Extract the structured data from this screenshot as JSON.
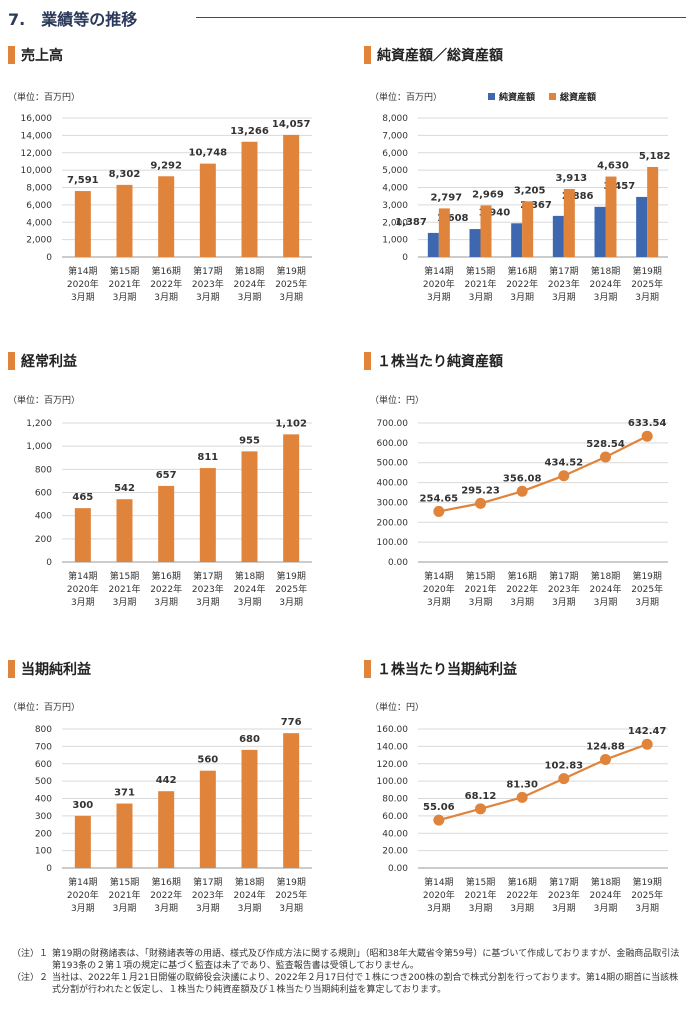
{
  "page": {
    "title": "7.　業績等の推移"
  },
  "colors": {
    "orange": "#e0833b",
    "blue": "#3d68b0",
    "grid": "#d9d9d9"
  },
  "x_categories": [
    [
      "第14期",
      "2020年",
      "3月期"
    ],
    [
      "第15期",
      "2021年",
      "3月期"
    ],
    [
      "第16期",
      "2022年",
      "3月期"
    ],
    [
      "第17期",
      "2023年",
      "3月期"
    ],
    [
      "第18期",
      "2024年",
      "3月期"
    ],
    [
      "第19期",
      "2025年",
      "3月期"
    ]
  ],
  "chart_data": [
    {
      "id": "sales",
      "type": "bar",
      "title": "売上高",
      "unit": "（単位：百万円）",
      "ylim": [
        0,
        16000
      ],
      "yticks": [
        "0",
        "2,000",
        "4,000",
        "6,000",
        "8,000",
        "10,000",
        "12,000",
        "14,000",
        "16,000"
      ],
      "series": [
        {
          "values": [
            7591,
            8302,
            9292,
            10748,
            13266,
            14057
          ],
          "labels": [
            "7,591",
            "8,302",
            "9,292",
            "10,748",
            "13,266",
            "14,057"
          ],
          "color": "#e0833b"
        }
      ]
    },
    {
      "id": "assets",
      "type": "bar",
      "title": "純資産額／総資産額",
      "unit": "（単位：百万円）",
      "ylim": [
        0,
        8000
      ],
      "yticks": [
        "0",
        "1,000",
        "2,000",
        "3,000",
        "4,000",
        "5,000",
        "6,000",
        "7,000",
        "8,000"
      ],
      "legend": [
        "純資産額",
        "総資産額"
      ],
      "series": [
        {
          "name": "純資産額",
          "values": [
            1387,
            1608,
            1940,
            2367,
            2886,
            3457
          ],
          "labels": [
            "1,387",
            "1,608",
            "1,940",
            "2,367",
            "2,886",
            "3,457"
          ],
          "color": "#3d68b0"
        },
        {
          "name": "総資産額",
          "values": [
            2797,
            2969,
            3205,
            3913,
            4630,
            5182
          ],
          "labels": [
            "2,797",
            "2,969",
            "3,205",
            "3,913",
            "4,630",
            "5,182"
          ],
          "color": "#e0833b"
        }
      ]
    },
    {
      "id": "ordinary",
      "type": "bar",
      "title": "経常利益",
      "unit": "（単位：百万円）",
      "ylim": [
        0,
        1200
      ],
      "yticks": [
        "0",
        "200",
        "400",
        "600",
        "800",
        "1,000",
        "1,200"
      ],
      "series": [
        {
          "values": [
            465,
            542,
            657,
            811,
            955,
            1102
          ],
          "labels": [
            "465",
            "542",
            "657",
            "811",
            "955",
            "1,102"
          ],
          "color": "#e0833b"
        }
      ]
    },
    {
      "id": "bps",
      "type": "line",
      "title": "１株当たり純資産額",
      "unit": "（単位：円）",
      "ylim": [
        0,
        700
      ],
      "yticks": [
        "0.00",
        "100.00",
        "200.00",
        "300.00",
        "400.00",
        "500.00",
        "600.00",
        "700.00"
      ],
      "series": [
        {
          "values": [
            254.65,
            295.23,
            356.08,
            434.52,
            528.54,
            633.54
          ],
          "labels": [
            "254.65",
            "295.23",
            "356.08",
            "434.52",
            "528.54",
            "633.54"
          ],
          "color": "#e0833b"
        }
      ]
    },
    {
      "id": "net",
      "type": "bar",
      "title": "当期純利益",
      "unit": "（単位：百万円）",
      "ylim": [
        0,
        800
      ],
      "yticks": [
        "0",
        "100",
        "200",
        "300",
        "400",
        "500",
        "600",
        "700",
        "800"
      ],
      "series": [
        {
          "values": [
            300,
            371,
            442,
            560,
            680,
            776
          ],
          "labels": [
            "300",
            "371",
            "442",
            "560",
            "680",
            "776"
          ],
          "color": "#e0833b"
        }
      ]
    },
    {
      "id": "eps",
      "type": "line",
      "title": "１株当たり当期純利益",
      "unit": "（単位：円）",
      "ylim": [
        0,
        160
      ],
      "yticks": [
        "0.00",
        "20.00",
        "40.00",
        "60.00",
        "80.00",
        "100.00",
        "120.00",
        "140.00",
        "160.00"
      ],
      "series": [
        {
          "values": [
            55.06,
            68.12,
            81.3,
            102.83,
            124.88,
            142.47
          ],
          "labels": [
            "55.06",
            "68.12",
            "81.30",
            "102.83",
            "124.88",
            "142.47"
          ],
          "color": "#e0833b"
        }
      ]
    }
  ],
  "notes": [
    {
      "label": "（注）１",
      "text": "第19期の財務諸表は、「財務諸表等の用語、様式及び作成方法に関する規則」（昭和38年大蔵省令第59号）に基づいて作成しておりますが、金融商品取引法第193条の２第１項の規定に基づく監査は未了であり、監査報告書は受領しておりません。"
    },
    {
      "label": "（注）２",
      "text": "当社は、2022年１月21日開催の取締役会決議により、2022年２月17日付で１株につき200株の割合で株式分割を行っております。第14期の期首に当該株式分割が行われたと仮定し、１株当たり純資産額及び１株当たり当期純利益を算定しております。"
    }
  ]
}
